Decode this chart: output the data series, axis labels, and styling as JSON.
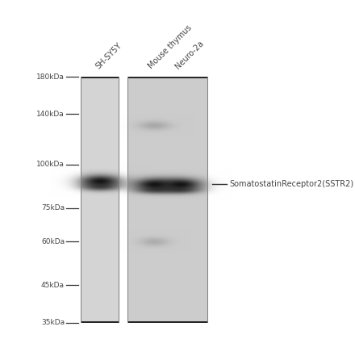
{
  "bg_color": "#ffffff",
  "gel_bg": "#d0d0d0",
  "gel_bg2": "#c8c8c8",
  "band_color": "#111111",
  "faint_band_color": "#aaaaaa",
  "very_faint_color": "#bbbbbb",
  "mw_markers": [
    180,
    140,
    100,
    75,
    60,
    45,
    35
  ],
  "mw_labels": [
    "180kDa—",
    "140kDa—",
    "100kDa—",
    "75kDa—",
    "60kDa—",
    "45kDa—",
    "35kDa—"
  ],
  "sample_labels": [
    "SH-SY5Y",
    "Mouse thymus",
    "Neuro-2a"
  ],
  "annotation_label": "SomatostatinReceptor2(SSTR2)",
  "text_color": "#444444"
}
